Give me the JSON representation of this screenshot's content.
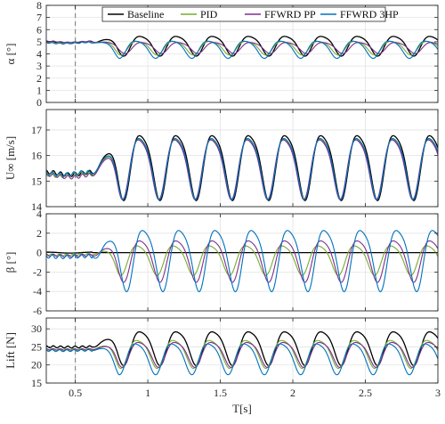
{
  "chart_data": {
    "type": "line",
    "x_range": [
      0.3,
      3.0
    ],
    "x_ticks": [
      0.5,
      1,
      1.5,
      2,
      2.5,
      3
    ],
    "x_tick_labels": [
      "0.5",
      "1",
      "1.5",
      "2",
      "2.5",
      "3"
    ],
    "xlabel": "T[s]",
    "marker_line_x": 0.5,
    "grid": true,
    "legend": {
      "placement": "top-right",
      "entries": [
        {
          "name": "Baseline",
          "color": "#000000"
        },
        {
          "name": "PID",
          "color": "#77ac30"
        },
        {
          "name": "FFWRD PP",
          "color": "#7e2f8e"
        },
        {
          "name": "FFWRD 3HP",
          "color": "#0072bd"
        }
      ]
    },
    "disturbance_period_s": 0.25,
    "series_names": [
      "Baseline",
      "PID",
      "FFWRD PP",
      "FFWRD 3HP"
    ],
    "panels": [
      {
        "id": "alpha",
        "ylabel": "α [°]",
        "ylim": [
          0,
          8
        ],
        "yticks": [
          0,
          1,
          2,
          3,
          4,
          5,
          6,
          7,
          8
        ],
        "mean_before": {
          "Baseline": 4.95,
          "PID": 4.95,
          "FFWRD PP": 5.0,
          "FFWRD 3HP": 4.9
        },
        "mean_after": {
          "Baseline": 4.75,
          "PID": 4.55,
          "FFWRD PP": 4.55,
          "FFWRD 3HP": 4.45
        },
        "amplitude": {
          "Baseline": 0.8,
          "PID": 0.55,
          "FFWRD PP": 0.45,
          "FFWRD 3HP": 0.7
        },
        "phase_offset_s": {
          "Baseline": 0.0,
          "PID": 0.02,
          "FFWRD PP": -0.01,
          "FFWRD 3HP": 0.03
        }
      },
      {
        "id": "velocity",
        "ylabel": "U∞ [m/s]",
        "ylim": [
          14,
          17.8
        ],
        "yticks": [
          14,
          15,
          16,
          17
        ],
        "mean_before": {
          "Baseline": 15.3,
          "PID": 15.25,
          "FFWRD PP": 15.2,
          "FFWRD 3HP": 15.3
        },
        "mean_after": {
          "Baseline": 15.7,
          "PID": 15.65,
          "FFWRD PP": 15.62,
          "FFWRD 3HP": 15.65
        },
        "amplitude": {
          "Baseline": 1.25,
          "PID": 1.15,
          "FFWRD PP": 1.15,
          "FFWRD 3HP": 1.18
        },
        "phase_offset_s": {
          "Baseline": 0.0,
          "PID": 0.005,
          "FFWRD PP": 0.008,
          "FFWRD 3HP": 0.004
        }
      },
      {
        "id": "beta",
        "ylabel": "β [°]",
        "ylim": [
          -6,
          4
        ],
        "yticks": [
          -6,
          -4,
          -2,
          0,
          2,
          4
        ],
        "mean_before": {
          "Baseline": 0.0,
          "PID": -0.2,
          "FFWRD PP": -0.3,
          "FFWRD 3HP": -0.4
        },
        "mean_after": {
          "Baseline": 0.0,
          "PID": -0.6,
          "FFWRD PP": -0.6,
          "FFWRD 3HP": -0.4
        },
        "amplitude": {
          "Baseline": 0.0,
          "PID": 1.5,
          "FFWRD PP": 2.1,
          "FFWRD 3HP": 3.1
        },
        "phase_offset_s": {
          "Baseline": 0.0,
          "PID": 0.02,
          "FFWRD PP": 0.0,
          "FFWRD 3HP": -0.02
        }
      },
      {
        "id": "lift",
        "ylabel": "Lift [N]",
        "ylim": [
          15,
          33
        ],
        "yticks": [
          15,
          20,
          25,
          30
        ],
        "mean_before": {
          "Baseline": 25.0,
          "PID": 24.3,
          "FFWRD PP": 24.3,
          "FFWRD 3HP": 24.0
        },
        "mean_after": {
          "Baseline": 25.2,
          "PID": 23.5,
          "FFWRD PP": 23.3,
          "FFWRD 3HP": 22.2
        },
        "amplitude": {
          "Baseline": 4.6,
          "PID": 3.8,
          "FFWRD PP": 3.4,
          "FFWRD 3HP": 4.2
        },
        "phase_offset_s": {
          "Baseline": 0.0,
          "PID": 0.02,
          "FFWRD PP": 0.01,
          "FFWRD 3HP": 0.03
        }
      }
    ]
  }
}
